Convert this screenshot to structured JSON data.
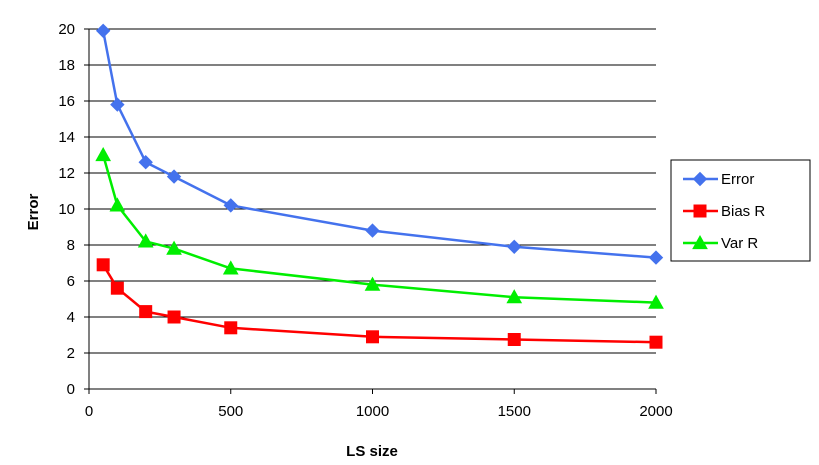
{
  "chart_data": {
    "type": "line",
    "title": "",
    "xlabel": "LS size",
    "ylabel": "Error",
    "xlim": [
      0,
      2000
    ],
    "ylim": [
      0,
      20
    ],
    "xticks": [
      0,
      500,
      1000,
      1500,
      2000
    ],
    "yticks": [
      0,
      2,
      4,
      6,
      8,
      10,
      12,
      14,
      16,
      18,
      20
    ],
    "grid": "horizontal",
    "legend_position": "right",
    "x": [
      50,
      100,
      200,
      300,
      500,
      1000,
      1500,
      2000
    ],
    "series": [
      {
        "name": "Error",
        "color": "#4472ed",
        "marker": "diamond",
        "values": [
          19.9,
          15.8,
          12.6,
          11.8,
          10.2,
          8.8,
          7.9,
          7.3
        ]
      },
      {
        "name": "Bias R",
        "color": "#ff0000",
        "marker": "square",
        "values": [
          6.9,
          5.6,
          4.3,
          4.0,
          3.4,
          2.9,
          2.75,
          2.6
        ]
      },
      {
        "name": "Var R",
        "color": "#00ee00",
        "marker": "triangle",
        "values": [
          13.0,
          10.2,
          8.2,
          7.8,
          6.7,
          5.8,
          5.1,
          4.8
        ]
      }
    ]
  }
}
